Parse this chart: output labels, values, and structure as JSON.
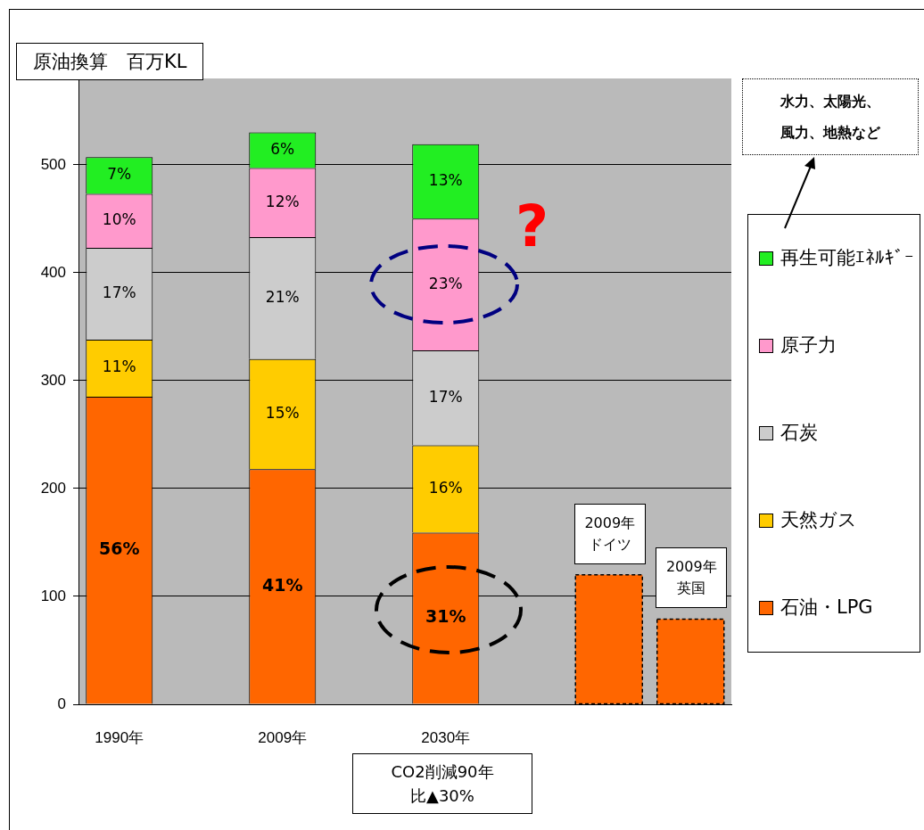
{
  "chart_data": {
    "type": "bar",
    "stacked": true,
    "ylabel": "原油換算　百万KL",
    "categories": [
      "1990年",
      null,
      "2009年",
      null,
      "2030年",
      null,
      "2009年ドイツ",
      "2009年英国"
    ],
    "series": [
      {
        "name": "石油・LPG",
        "color": "#ff6600",
        "values": [
          285,
          null,
          218,
          null,
          159,
          null,
          null,
          null
        ]
      },
      {
        "name": "天然ガス",
        "color": "#ffcc00",
        "values": [
          53,
          null,
          102,
          null,
          81,
          null,
          null,
          null
        ]
      },
      {
        "name": "石炭",
        "color": "#cccccc",
        "values": [
          85,
          null,
          113,
          null,
          88,
          null,
          null,
          null
        ]
      },
      {
        "name": "原子力",
        "color": "#ff99cc",
        "values": [
          50,
          null,
          64,
          null,
          122,
          null,
          null,
          null
        ]
      },
      {
        "name": "再生可能ｴﾈﾙｷﾞｰ",
        "color": "#22ee22",
        "values": [
          34,
          null,
          33,
          null,
          69,
          null,
          null,
          null
        ]
      },
      {
        "color": "#ff6600",
        "line_style": "dashed",
        "values": [
          null,
          null,
          null,
          null,
          null,
          null,
          120,
          79
        ]
      }
    ],
    "ylim": [
      0,
      580
    ],
    "yticks": [
      0,
      100,
      200,
      300,
      400,
      500
    ],
    "grid": "y",
    "legend": "right",
    "annotations": [
      "CO2削減90年比▲30%",
      "水力、太陽光、風力、地熱など",
      "?",
      "56%",
      "11%",
      "17%",
      "10%",
      "7%",
      "41%",
      "15%",
      "21%",
      "12%",
      "6%",
      "31%",
      "16%",
      "17%",
      "23%",
      "13%"
    ]
  }
}
